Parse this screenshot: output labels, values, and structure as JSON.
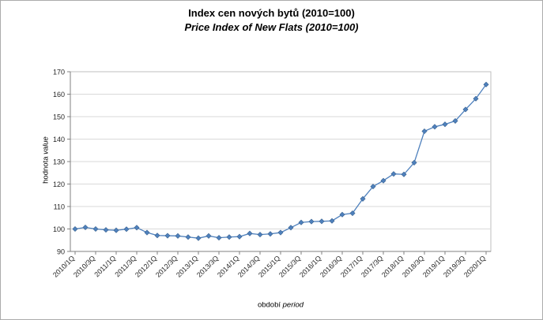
{
  "window": {
    "background": "#ffffff",
    "border_color": "#ababab"
  },
  "title": {
    "line1_cz": "Index cen nových bytů (2010=100)",
    "line2_en": "Price Index of New Flats (2010=100)"
  },
  "axes": {
    "y_label_cz": "hodnota",
    "y_label_en": "value",
    "x_label_cz": "období",
    "x_label_en": "period"
  },
  "chart_data": {
    "type": "line",
    "title": "Index cen nových bytů (2010=100) / Price Index of New Flats (2010=100)",
    "xlabel": "období period",
    "ylabel": "hodnota value",
    "ylim": [
      90,
      170
    ],
    "y_ticks": [
      90,
      100,
      110,
      120,
      130,
      140,
      150,
      160,
      170
    ],
    "grid": "horizontal",
    "legend": "none",
    "marker": "diamond",
    "x": [
      "2010/1Q",
      "2010/2Q",
      "2010/3Q",
      "2010/4Q",
      "2011/1Q",
      "2011/2Q",
      "2011/3Q",
      "2011/4Q",
      "2012/1Q",
      "2012/2Q",
      "2012/3Q",
      "2012/4Q",
      "2013/1Q",
      "2013/2Q",
      "2013/3Q",
      "2013/4Q",
      "2014/1Q",
      "2014/2Q",
      "2014/3Q",
      "2014/4Q",
      "2015/1Q",
      "2015/2Q",
      "2015/3Q",
      "2015/4Q",
      "2016/1Q",
      "2016/2Q",
      "2016/3Q",
      "2016/4Q",
      "2017/1Q",
      "2017/2Q",
      "2017/3Q",
      "2017/4Q",
      "2018/1Q",
      "2018/2Q",
      "2018/3Q",
      "2018/4Q",
      "2019/1Q",
      "2019/2Q",
      "2019/3Q",
      "2019/4Q",
      "2020/1Q"
    ],
    "x_tick_labels": [
      "2010/1Q",
      "2010/3Q",
      "2011/1Q",
      "2011/3Q",
      "2012/1Q",
      "2012/3Q",
      "2013/1Q",
      "2013/3Q",
      "2014/1Q",
      "2014/3Q",
      "2015/1Q",
      "2015/3Q",
      "2016/1Q",
      "2016/3Q",
      "2017/1Q",
      "2017/3Q",
      "2018/1Q",
      "2018/3Q",
      "2019/1Q",
      "2019/3Q",
      "2020/1Q"
    ],
    "series": [
      {
        "name": "index cen nových bytů / price index of new flats",
        "color": "#4F81BD",
        "marker_edge_color": "#38618F",
        "values": [
          100.0,
          100.7,
          100.0,
          99.6,
          99.4,
          99.9,
          100.6,
          98.4,
          97.1,
          97.0,
          96.9,
          96.4,
          95.9,
          96.9,
          96.1,
          96.4,
          96.6,
          98.0,
          97.5,
          97.8,
          98.4,
          100.6,
          102.9,
          103.3,
          103.4,
          103.6,
          106.4,
          107.0,
          113.4,
          118.9,
          121.5,
          124.5,
          124.3,
          129.5,
          143.5,
          145.5,
          146.6,
          148.1,
          153.2,
          158.0,
          164.3
        ]
      }
    ]
  }
}
